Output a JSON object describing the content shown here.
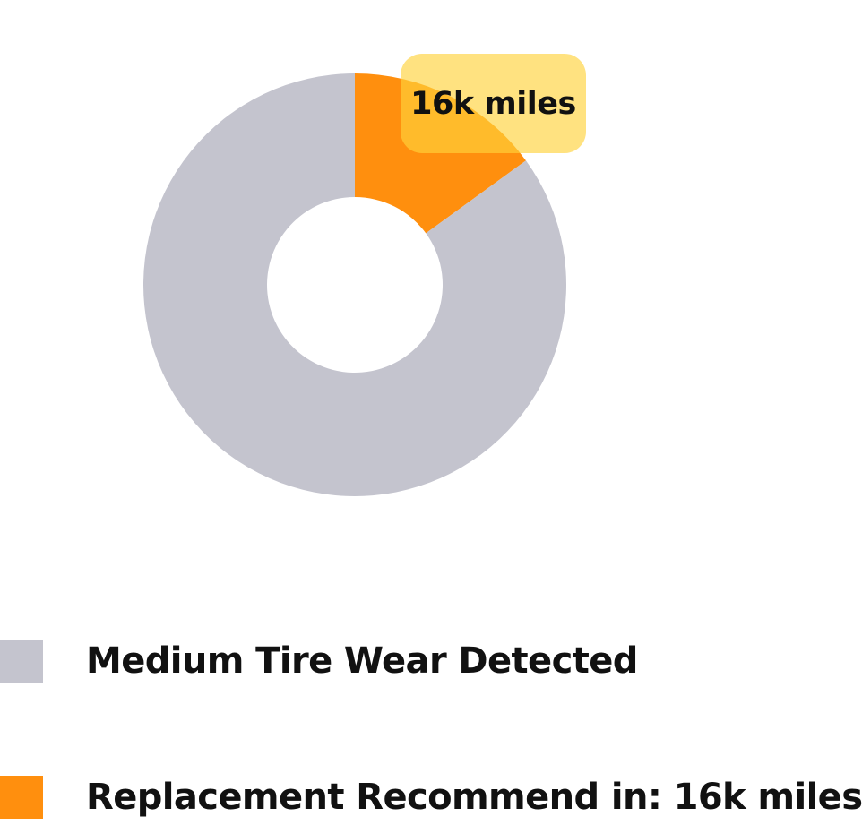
{
  "chart_data": {
    "type": "pie",
    "variant": "donut",
    "title": "",
    "slices": [
      {
        "label": "Replacement Recommend in: 16k miles",
        "value": 15,
        "color": "#FF8F0E"
      },
      {
        "label": "Medium Tire Wear Detected",
        "value": 85,
        "color": "#C4C4CE"
      }
    ],
    "annotation": "16k miles",
    "legend": {
      "placement": "bottom-left",
      "entries": [
        {
          "label": "Medium Tire Wear Detected",
          "color": "#C4C4CE"
        },
        {
          "label": "Replacement Recommend in: 16k miles",
          "color": "#FF8F0E"
        }
      ]
    }
  }
}
